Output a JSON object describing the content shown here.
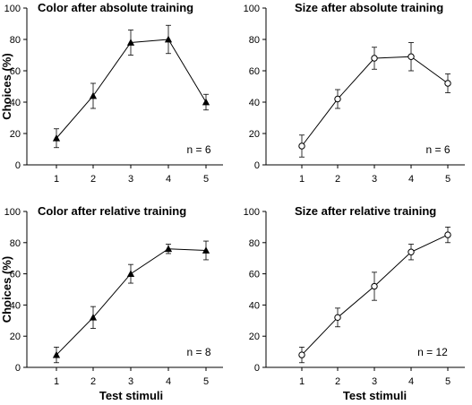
{
  "chart_data": [
    {
      "type": "line",
      "title": "Color after absolute training",
      "xlabel": "",
      "ylabel": "Choices (%)",
      "x": [
        1,
        2,
        3,
        4,
        5
      ],
      "ylim": [
        0,
        100
      ],
      "yticks": [
        0,
        20,
        40,
        60,
        80,
        100
      ],
      "series": [
        {
          "marker": "filled-triangle",
          "values": [
            17,
            44,
            78,
            80,
            40
          ],
          "errors": [
            6,
            8,
            8,
            9,
            5
          ]
        }
      ],
      "annotation": "n = 6"
    },
    {
      "type": "line",
      "title": "Size after absolute training",
      "xlabel": "",
      "ylabel": "",
      "x": [
        1,
        2,
        3,
        4,
        5
      ],
      "ylim": [
        0,
        100
      ],
      "yticks": [
        0,
        20,
        40,
        60,
        80,
        100
      ],
      "series": [
        {
          "marker": "open-circle",
          "values": [
            12,
            42,
            68,
            69,
            52
          ],
          "errors": [
            7,
            6,
            7,
            9,
            6
          ]
        }
      ],
      "annotation": "n = 6"
    },
    {
      "type": "line",
      "title": "Color after relative training",
      "xlabel": "Test stimuli",
      "ylabel": "Choices (%)",
      "x": [
        1,
        2,
        3,
        4,
        5
      ],
      "ylim": [
        0,
        100
      ],
      "yticks": [
        0,
        20,
        40,
        60,
        80,
        100
      ],
      "series": [
        {
          "marker": "filled-triangle",
          "values": [
            8,
            32,
            60,
            76,
            75
          ],
          "errors": [
            5,
            7,
            6,
            3,
            6
          ]
        }
      ],
      "annotation": "n = 8"
    },
    {
      "type": "line",
      "title": "Size after relative training",
      "xlabel": "Test stimuli",
      "ylabel": "",
      "x": [
        1,
        2,
        3,
        4,
        5
      ],
      "ylim": [
        0,
        100
      ],
      "yticks": [
        0,
        20,
        40,
        60,
        80,
        100
      ],
      "series": [
        {
          "marker": "open-circle",
          "values": [
            8,
            32,
            52,
            74,
            85
          ],
          "errors": [
            5,
            6,
            9,
            5,
            5
          ]
        }
      ],
      "annotation": "n = 12"
    }
  ]
}
